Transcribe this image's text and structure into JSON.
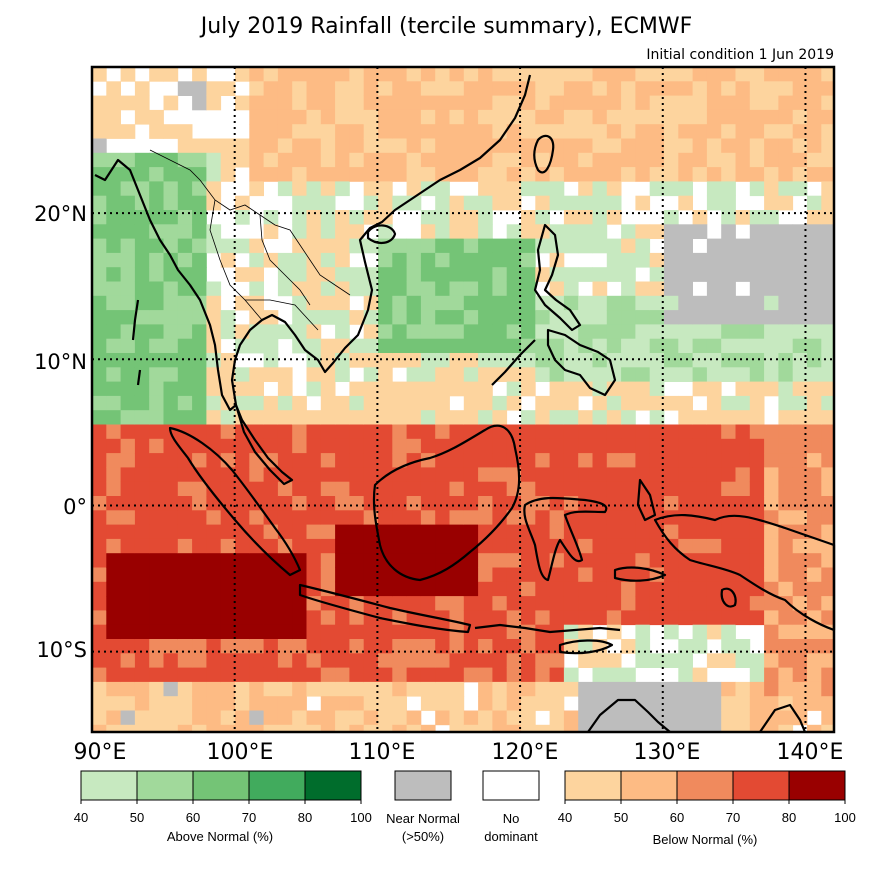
{
  "title": "July 2019 Rainfall (tercile summary), ECMWF",
  "subtitle": "Initial condition 1 Jun 2019",
  "map": {
    "lon_range": [
      90,
      142
    ],
    "lat_range": [
      -15.5,
      30
    ],
    "grid_lons": [
      100,
      110,
      120,
      130,
      140
    ],
    "grid_lats": [
      -10,
      0,
      10,
      20
    ],
    "lat_labels": [
      "20°N",
      "10°N",
      "0°",
      "10°S"
    ],
    "lon_labels": [
      "90°E",
      "100°E",
      "110°E",
      "120°E",
      "130°E",
      "140°E"
    ]
  },
  "legend": {
    "above": {
      "caption": "Above Normal (%)",
      "ticks": [
        "40",
        "50",
        "60",
        "70",
        "80",
        "100"
      ],
      "colors": [
        "#c7e9c0",
        "#a1d99b",
        "#74c476",
        "#41ab5d",
        "#006d2c"
      ]
    },
    "near": {
      "line1": "Near Normal",
      "line2": "(>50%)",
      "color": "#bdbdbd"
    },
    "none": {
      "line1": "No",
      "line2": "dominant",
      "color": "#ffffff"
    },
    "below": {
      "caption": "Below Normal (%)",
      "ticks": [
        "40",
        "50",
        "60",
        "70",
        "80",
        "100"
      ],
      "colors": [
        "#fdd49e",
        "#fdbb84",
        "#f08a5d",
        "#e34a33",
        "#990000"
      ]
    }
  }
}
